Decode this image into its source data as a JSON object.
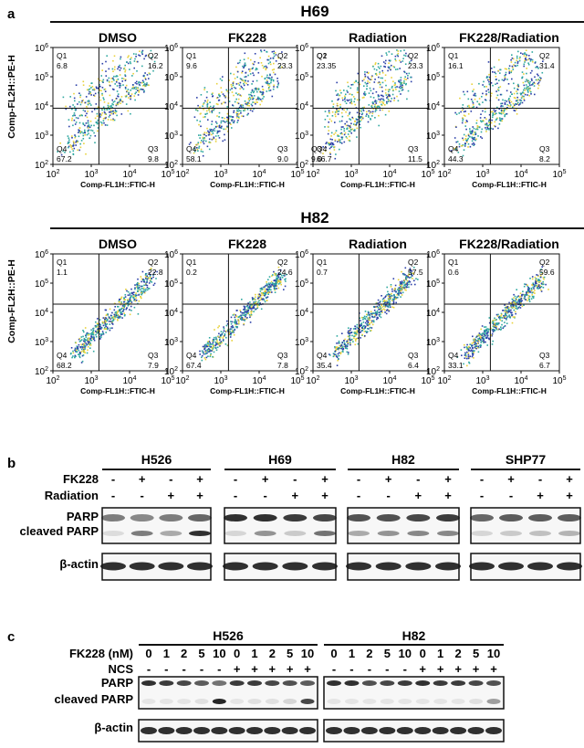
{
  "panel_a": {
    "label": "a",
    "y_axis_label": "Comp-FL2H::PE-H",
    "x_axis_label": "Comp-FL1H::FTIC-H",
    "y_ticks": [
      "10",
      "10",
      "10",
      "10",
      "10"
    ],
    "y_tick_exps": [
      "2",
      "3",
      "4",
      "5",
      "6"
    ],
    "x_ticks": [
      "10",
      "10",
      "10",
      "10"
    ],
    "x_tick_exps": [
      "2",
      "3",
      "4",
      "5"
    ],
    "h69": {
      "title": "H69",
      "plots": [
        {
          "name": "DMSO",
          "q1": "Q1",
          "q1v": "6.8",
          "q2": "Q2",
          "q2v": "16.2",
          "q3": "Q3",
          "q3v": "9.8",
          "q4": "Q4",
          "q4v": "67.2"
        },
        {
          "name": "FK228",
          "q1": "Q1",
          "q1v": "9.6",
          "q2": "Q2",
          "q2v": "23.3",
          "q3": "Q3",
          "q3v": "9.0",
          "q4": "Q4",
          "q4v": "58.1"
        },
        {
          "name": "Radiation",
          "q1": "Q1",
          "q1v": "23.35",
          "q2": "Q2",
          "q2v": "23.3",
          "q3": "Q3",
          "q3v": "11.5",
          "q4": "Q4",
          "q4v": "66.7",
          "overlap_q2": "Q2",
          "overlap_q3": "Q3",
          "overlap_q3v": "9.0"
        },
        {
          "name": "FK228/Radiation",
          "q1": "Q1",
          "q1v": "16.1",
          "q2": "Q2",
          "q2v": "31.4",
          "q3": "Q3",
          "q3v": "8.2",
          "q4": "Q4",
          "q4v": "44.3"
        }
      ]
    },
    "h82": {
      "title": "H82",
      "plots": [
        {
          "name": "DMSO",
          "q1": "Q1",
          "q1v": "1.1",
          "q2": "Q2",
          "q2v": "22.8",
          "q3": "Q3",
          "q3v": "7.9",
          "q4": "Q4",
          "q4v": "68.2"
        },
        {
          "name": "FK228",
          "q1": "Q1",
          "q1v": "0.2",
          "q2": "Q2",
          "q2v": "24.6",
          "q3": "Q3",
          "q3v": "7.8",
          "q4": "Q4",
          "q4v": "67.4"
        },
        {
          "name": "Radiation",
          "q1": "Q1",
          "q1v": "0.7",
          "q2": "Q2",
          "q2v": "57.5",
          "q3": "Q3",
          "q3v": "6.4",
          "q4": "Q4",
          "q4v": "35.4"
        },
        {
          "name": "FK228/Radiation",
          "q1": "Q1",
          "q1v": "0.6",
          "q2": "Q2",
          "q2v": "59.6",
          "q3": "Q3",
          "q3v": "6.7",
          "q4": "Q4",
          "q4v": "33.1"
        }
      ]
    }
  },
  "panel_b": {
    "label": "b",
    "fk228_label": "FK228",
    "radiation_label": "Radiation",
    "parp_label": "PARP",
    "cleaved_label": "cleaved PARP",
    "actin_label": "β-actin",
    "cell_lines": [
      "H526",
      "H69",
      "H82",
      "SHP77"
    ],
    "fk228_signs": [
      "-",
      "+",
      "-",
      "+"
    ],
    "radiation_signs": [
      "-",
      "-",
      "+",
      "+"
    ]
  },
  "panel_c": {
    "label": "c",
    "fk228_label": "FK228 (nM)",
    "ncs_label": "NCS",
    "parp_label": "PARP",
    "cleaved_label": "cleaved PARP",
    "actin_label": "β-actin",
    "cell_lines": [
      "H526",
      "H82"
    ],
    "doses": [
      "0",
      "1",
      "2",
      "5",
      "10",
      "0",
      "1",
      "2",
      "5",
      "10"
    ],
    "ncs_signs": [
      "-",
      "-",
      "-",
      "-",
      "-",
      "+",
      "+",
      "+",
      "+",
      "+"
    ]
  },
  "colors": {
    "line": "#111111",
    "scatter_low": "#2b3fa8",
    "scatter_mid": "#2fa8a0",
    "scatter_high": "#e8d23a",
    "band_dark": "#1a1a1a"
  }
}
